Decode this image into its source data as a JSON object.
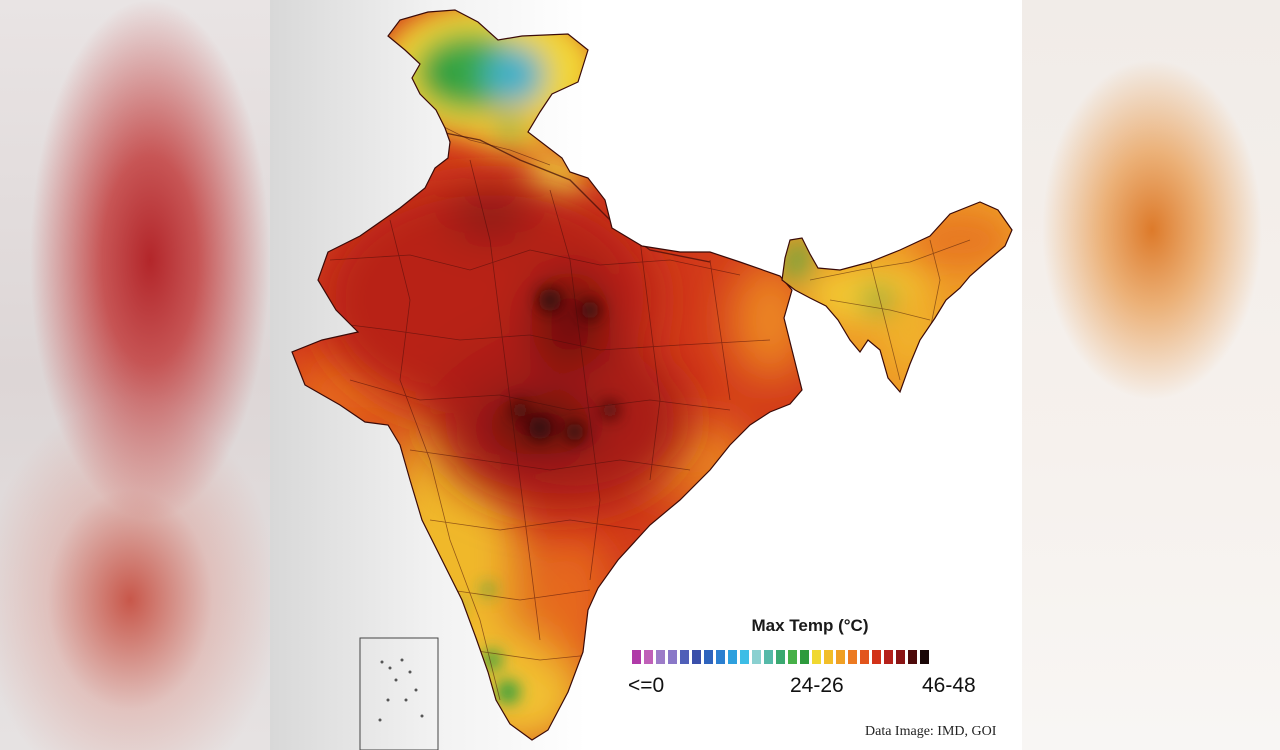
{
  "legend": {
    "title": "Max Temp (°C)",
    "labels": {
      "low": "<=0",
      "mid": "24-26",
      "high": "46-48"
    },
    "colors": [
      "#b03aa8",
      "#c060b8",
      "#9c7cc8",
      "#8a78c8",
      "#4f5fb8",
      "#3a4faa",
      "#2e63bd",
      "#2b7fd0",
      "#2ea0de",
      "#3cbde6",
      "#8ad0d0",
      "#55b9a8",
      "#3aa870",
      "#46b048",
      "#2e9a3c",
      "#f0d830",
      "#f2be28",
      "#f0a024",
      "#ec7a22",
      "#e2541c",
      "#d23218",
      "#b5201a",
      "#8a1414",
      "#4e0a0a",
      "#1a0606"
    ]
  },
  "credit": "Data Image: IMD, GOI",
  "colors": {
    "extreme": "#2b0707",
    "very_hot": "#a11a14",
    "hot": "#cc3218",
    "warm": "#e45e1c",
    "mild": "#f0a424",
    "cool": "#f2d534",
    "cold": "#2f9e3c",
    "frozen": "#4aa7e0"
  }
}
